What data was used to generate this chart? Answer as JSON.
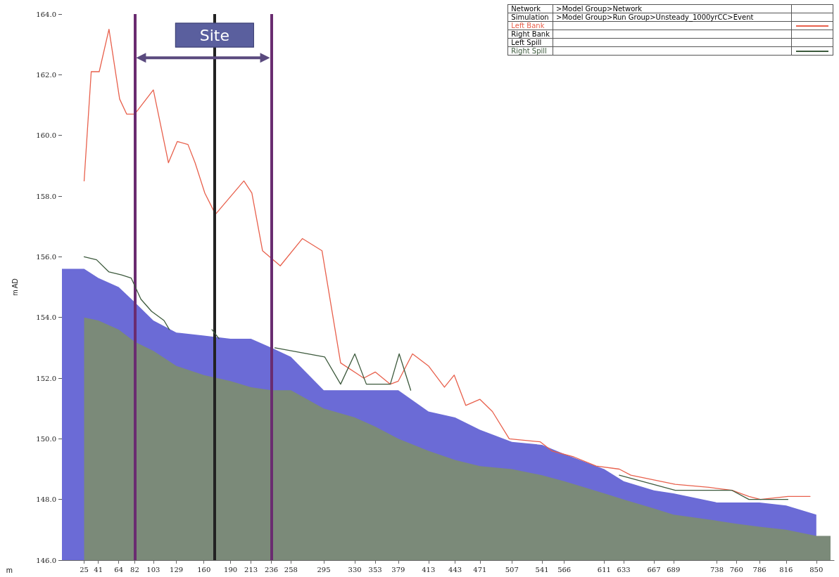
{
  "chart_data": {
    "type": "area",
    "xlabel": "m",
    "ylabel": "m AD",
    "xlim": [
      0,
      870
    ],
    "xticks": [
      25,
      41,
      64,
      82,
      103,
      129,
      160,
      190,
      213,
      236,
      258,
      295,
      330,
      353,
      379,
      413,
      443,
      471,
      507,
      541,
      566,
      611,
      633,
      667,
      689,
      738,
      760,
      786,
      816,
      850
    ],
    "ylim": [
      146,
      164
    ],
    "yticks": [
      {
        "value": 146,
        "label": "146.0"
      },
      {
        "value": 148,
        "label": "148.0"
      },
      {
        "value": 150,
        "label": "150.0"
      },
      {
        "value": 152,
        "label": "152.0"
      },
      {
        "value": 154,
        "label": "154.0"
      },
      {
        "value": 156,
        "label": "156.0"
      },
      {
        "value": 158,
        "label": "158.0"
      },
      {
        "value": 160,
        "label": "160.0"
      },
      {
        "value": 162,
        "label": "162.0"
      },
      {
        "value": 164,
        "label": "164.0"
      }
    ],
    "series": [
      {
        "color": "#6b6bd6",
        "x": [
          0,
          25,
          41,
          64,
          82,
          103,
          129,
          160,
          190,
          213,
          236,
          258,
          295,
          330,
          353,
          379,
          413,
          443,
          471,
          507,
          541,
          566,
          611,
          633,
          667,
          689,
          738,
          760,
          786,
          816,
          850
        ],
        "values": [
          155.6,
          155.6,
          155.3,
          155.0,
          154.5,
          153.9,
          153.5,
          153.4,
          153.3,
          153.3,
          153.0,
          152.7,
          151.6,
          151.6,
          151.6,
          151.6,
          150.9,
          150.7,
          150.3,
          149.9,
          149.8,
          149.5,
          149.0,
          148.6,
          148.3,
          148.2,
          147.9,
          147.9,
          147.9,
          147.8,
          147.5
        ]
      },
      {
        "color": "#7b8a79",
        "x": [
          25,
          41,
          64,
          82,
          103,
          129,
          160,
          190,
          213,
          236,
          258,
          295,
          330,
          353,
          379,
          413,
          443,
          471,
          507,
          541,
          566,
          611,
          633,
          667,
          689,
          738,
          760,
          786,
          816,
          850,
          866
        ],
        "values": [
          154.0,
          153.9,
          153.6,
          153.2,
          152.9,
          152.4,
          152.1,
          151.9,
          151.7,
          151.6,
          151.6,
          151.0,
          150.7,
          150.4,
          150.0,
          149.6,
          149.3,
          149.1,
          149.0,
          148.8,
          148.6,
          148.2,
          148.0,
          147.7,
          147.5,
          147.3,
          147.2,
          147.1,
          147.0,
          146.8,
          146.8
        ]
      },
      {
        "type": "line",
        "name": "Left Bank",
        "color": "#e8604c",
        "x": [
          25,
          33,
          42,
          53,
          65,
          73,
          82,
          103,
          120,
          130,
          142,
          150,
          161,
          173,
          205,
          214,
          226,
          246,
          271,
          293,
          314,
          340,
          353,
          370,
          379,
          395,
          413,
          431,
          442,
          455,
          471,
          485,
          504,
          539,
          552,
          577,
          602,
          628,
          641,
          691,
          729,
          755,
          774,
          787,
          818,
          843
        ],
        "values": [
          158.5,
          162.1,
          162.1,
          163.5,
          161.2,
          160.7,
          160.7,
          161.5,
          159.1,
          159.8,
          159.7,
          159.1,
          158.1,
          157.4,
          158.5,
          158.1,
          156.2,
          155.7,
          156.6,
          156.2,
          152.5,
          152.0,
          152.2,
          151.8,
          151.9,
          152.8,
          152.4,
          151.7,
          152.1,
          151.1,
          151.3,
          150.9,
          150.0,
          149.9,
          149.6,
          149.4,
          149.1,
          149.0,
          148.8,
          148.5,
          148.4,
          148.3,
          148.1,
          148.0,
          148.1,
          148.1
        ]
      },
      {
        "type": "line",
        "name": "Right Spill",
        "color": "#3d5a3d",
        "x": [
          25,
          39,
          53,
          67,
          78,
          89,
          101,
          115,
          121,
          145,
          169,
          177,
          210,
          240,
          296,
          314,
          330,
          343,
          370,
          380,
          393,
          500,
          628,
          691,
          755,
          774,
          818
        ],
        "values": [
          156.0,
          155.9,
          155.5,
          155.4,
          155.3,
          154.6,
          154.2,
          153.9,
          153.6,
          null,
          153.6,
          153.3,
          null,
          153.0,
          152.7,
          151.8,
          152.8,
          151.8,
          151.8,
          152.8,
          151.6,
          null,
          148.8,
          148.3,
          148.3,
          148.0,
          148.0
        ]
      }
    ],
    "ref_lines": [
      {
        "axis": "x",
        "value": 82,
        "label": null,
        "color": "#6a2c70"
      },
      {
        "axis": "x",
        "value": 172,
        "label": null,
        "color": "#222222"
      },
      {
        "axis": "x",
        "value": 236,
        "label": null,
        "color": "#6a2c70"
      }
    ],
    "annotations": [
      "Network",
      ">Model Group>Network",
      "Simulation",
      ">Model Group>Run Group>Unsteady_1000yrCC>Event",
      "Right Bank",
      "Left Spill",
      {
        "text": "Site",
        "x": 172,
        "y": 163.3
      }
    ],
    "marker": "none",
    "line_style": "solid",
    "grid": false,
    "legend": "top right"
  }
}
